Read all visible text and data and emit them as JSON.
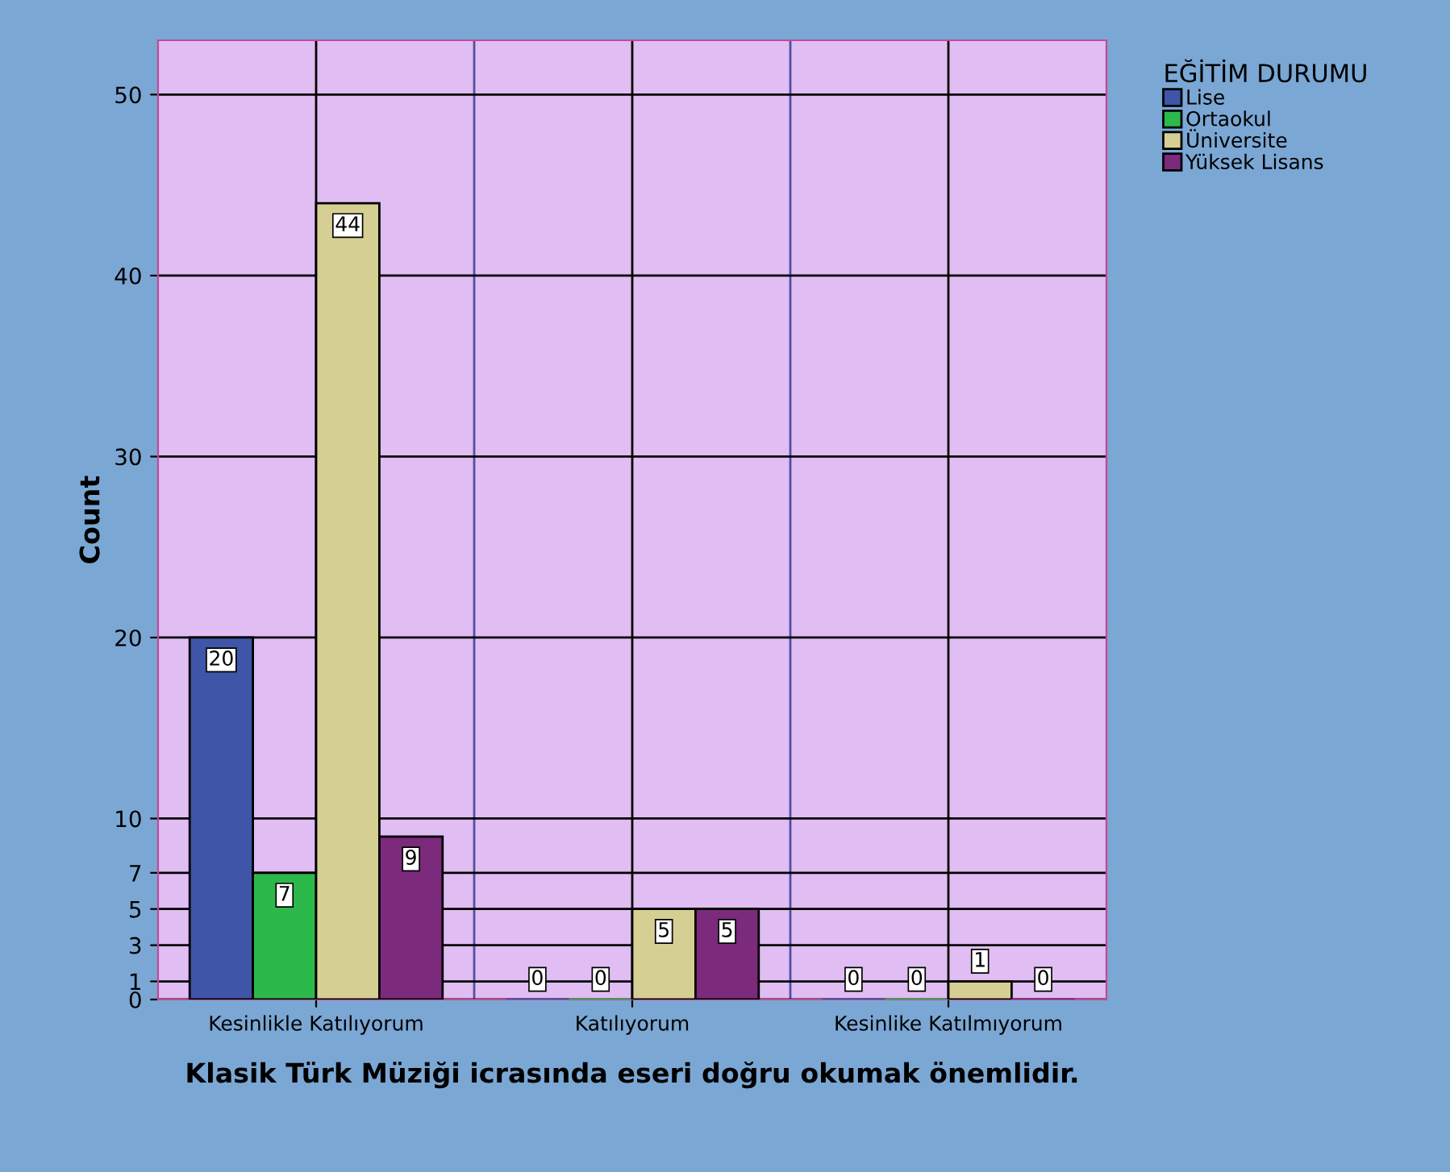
{
  "chart_data": {
    "type": "bar",
    "xlabel": "Klasik Türk Müziği icrasında eseri doğru okumak önemlidir.",
    "ylabel": "Count",
    "legend_title": "EĞİTİM DURUMU",
    "categories": [
      "Kesinlikle Katılıyorum",
      "Katılıyorum",
      "Kesinlike Katılmıyorum"
    ],
    "series": [
      {
        "name": "Lise",
        "color": "#3f55a8",
        "values": [
          20,
          0,
          0
        ]
      },
      {
        "name": "Ortaokul",
        "color": "#2db84b",
        "values": [
          7,
          0,
          0
        ]
      },
      {
        "name": "Üniversite",
        "color": "#d6cf94",
        "values": [
          44,
          5,
          1
        ]
      },
      {
        "name": "Yüksek Lisans",
        "color": "#7b2a7c",
        "values": [
          9,
          5,
          0
        ]
      }
    ],
    "ylim": [
      0,
      53
    ],
    "yticks": [
      0,
      1,
      3,
      5,
      7,
      10,
      20,
      30,
      40,
      50
    ],
    "grid": true,
    "legend": "top right",
    "data_labels": true
  }
}
